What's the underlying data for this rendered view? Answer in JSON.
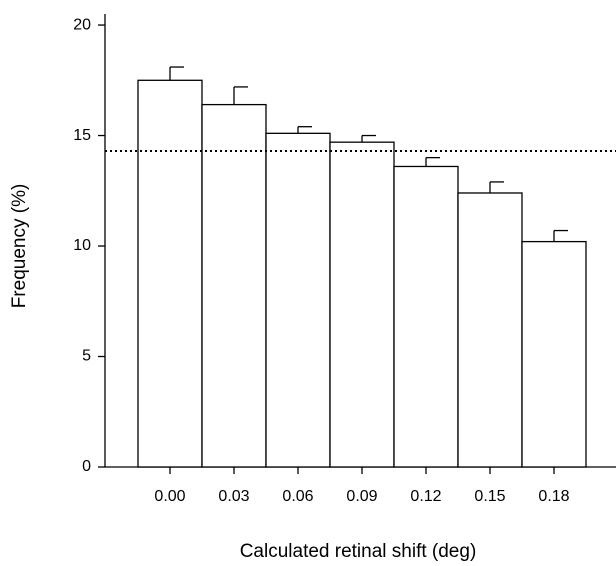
{
  "chart_data": {
    "type": "bar",
    "xlabel": "Calculated retinal shift (deg)",
    "ylabel": "Frequency (%)",
    "categories": [
      "0.00",
      "0.03",
      "0.06",
      "0.09",
      "0.12",
      "0.15",
      "0.18"
    ],
    "values": [
      17.5,
      16.4,
      15.1,
      14.7,
      13.6,
      12.4,
      10.2
    ],
    "errors": [
      0.6,
      0.8,
      0.3,
      0.3,
      0.4,
      0.5,
      0.5
    ],
    "color": "#ffffff",
    "reference_line": 14.3,
    "ylim": [
      0,
      20.5
    ],
    "yticks": [
      0,
      5,
      10,
      15,
      20
    ],
    "grid": false
  }
}
